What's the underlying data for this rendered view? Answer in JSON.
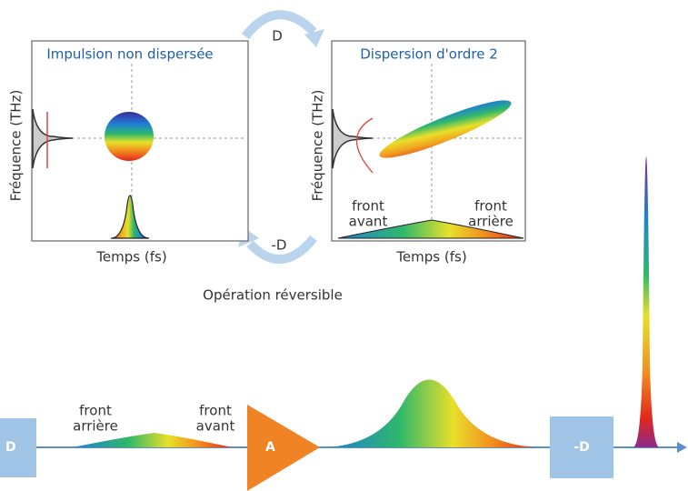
{
  "top_cycle": {
    "forward_label": "D",
    "backward_label": "-D",
    "caption": "Opération réversible"
  },
  "panels": [
    {
      "title": "Impulsion non dispersée",
      "y_label": "Fréquence (THz)",
      "x_label": "Temps (fs)"
    },
    {
      "title": "Dispersion d'ordre 2",
      "y_label": "Fréquence (THz)",
      "x_label": "Temps (fs)",
      "left_note": [
        "front",
        "avant"
      ],
      "right_note": [
        "front",
        "arrière"
      ]
    }
  ],
  "bottom_chain": {
    "input_box": "D",
    "rear_note": [
      "front",
      "arrière"
    ],
    "front_note": [
      "front",
      "avant"
    ],
    "amplifier": "A",
    "compressor_box": "-D"
  }
}
